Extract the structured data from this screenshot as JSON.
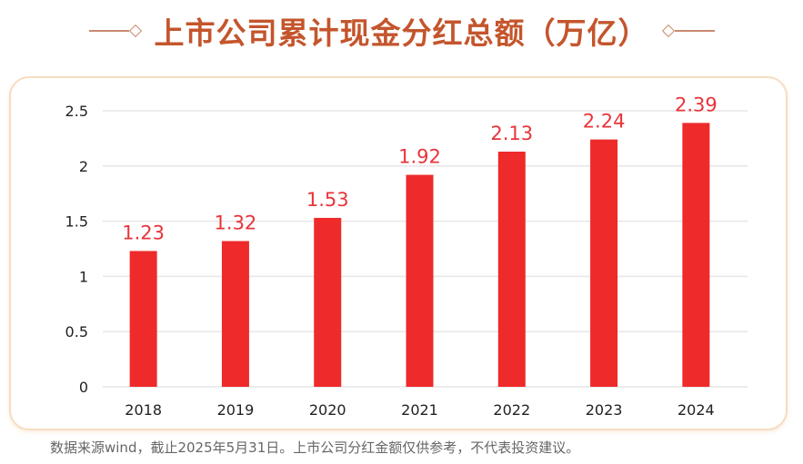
{
  "title": "上市公司累计现金分红总额（万亿）",
  "footer": "数据来源wind，截止2025年5月31日。上市公司分红金额仅供参考，不代表投资建议。",
  "colors": {
    "bar": "#ee2a2a",
    "label": "#e8343a",
    "title": "#c4552c"
  },
  "chart_data": {
    "type": "bar",
    "categories": [
      "2018",
      "2019",
      "2020",
      "2021",
      "2022",
      "2023",
      "2024"
    ],
    "values": [
      1.23,
      1.32,
      1.53,
      1.92,
      2.13,
      2.24,
      2.39
    ],
    "value_labels": [
      "1.23",
      "1.32",
      "1.53",
      "1.92",
      "2.13",
      "2.24",
      "2.39"
    ],
    "ylim": [
      0,
      2.5
    ],
    "yticks": [
      "0",
      "0.5",
      "1",
      "1.5",
      "2",
      "2.5"
    ],
    "grid": true
  }
}
